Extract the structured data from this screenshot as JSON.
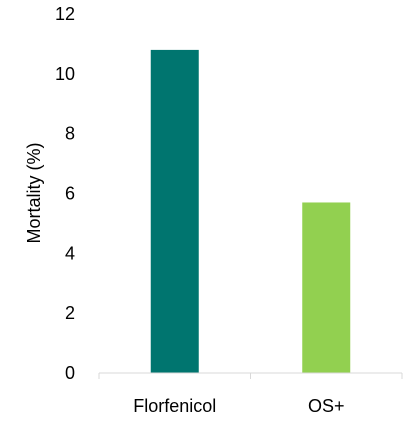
{
  "chart_data": {
    "type": "bar",
    "categories": [
      "Florfenicol",
      "OS+"
    ],
    "values": [
      10.8,
      5.7
    ],
    "colors": [
      "#00756F",
      "#92D050"
    ],
    "title": "",
    "xlabel": "",
    "ylabel": "Mortality (%)",
    "ylim": [
      0,
      12
    ],
    "yticks": [
      0,
      2,
      4,
      6,
      8,
      10,
      12
    ],
    "grid": false,
    "legend": "none"
  }
}
